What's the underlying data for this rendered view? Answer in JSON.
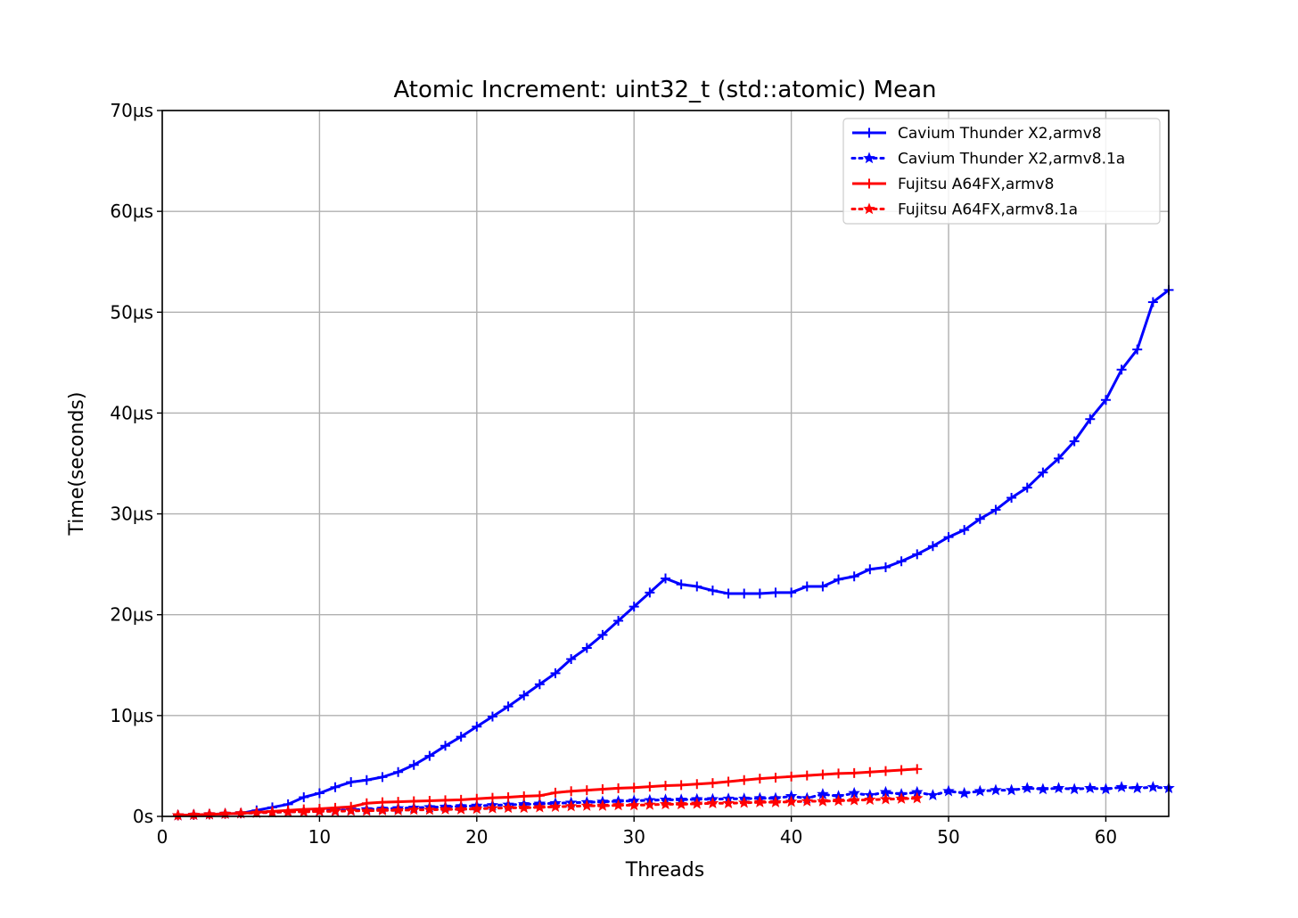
{
  "chart_data": {
    "type": "line",
    "title": "Atomic Increment: uint32_t (std::atomic) Mean",
    "xlabel": "Threads",
    "ylabel": "Time(seconds)",
    "xlim": [
      0,
      64
    ],
    "ylim": [
      0,
      70
    ],
    "x_ticks": [
      0,
      10,
      20,
      30,
      40,
      50,
      60
    ],
    "y_ticks": [
      0,
      10,
      20,
      30,
      40,
      50,
      60,
      70
    ],
    "y_tick_labels": [
      "0s",
      "10µs",
      "20µs",
      "30µs",
      "40µs",
      "50µs",
      "60µs",
      "70µs"
    ],
    "grid": true,
    "legend_position": "top-right",
    "series": [
      {
        "name": "Cavium Thunder X2,armv8",
        "color": "#0000ff",
        "line_style": "solid",
        "marker": "plus",
        "x": [
          1,
          2,
          3,
          4,
          5,
          6,
          7,
          8,
          9,
          10,
          11,
          12,
          13,
          14,
          15,
          16,
          17,
          18,
          19,
          20,
          21,
          22,
          23,
          24,
          25,
          26,
          27,
          28,
          29,
          30,
          31,
          32,
          33,
          34,
          35,
          36,
          37,
          38,
          39,
          40,
          41,
          42,
          43,
          44,
          45,
          46,
          47,
          48,
          49,
          50,
          51,
          52,
          53,
          54,
          55,
          56,
          57,
          58,
          59,
          60,
          61,
          62,
          63,
          64
        ],
        "values": [
          0.1,
          0.15,
          0.2,
          0.25,
          0.3,
          0.6,
          0.9,
          1.2,
          1.9,
          2.3,
          2.9,
          3.4,
          3.6,
          3.9,
          4.4,
          5.1,
          6.0,
          7.0,
          7.9,
          8.9,
          9.9,
          10.9,
          12.0,
          13.1,
          14.2,
          15.6,
          16.7,
          18.0,
          19.4,
          20.8,
          22.2,
          23.6,
          23.0,
          22.8,
          22.4,
          22.1,
          22.1,
          22.1,
          22.2,
          22.2,
          22.8,
          22.8,
          23.5,
          23.8,
          24.5,
          24.7,
          25.3,
          26.0,
          26.8,
          27.7,
          28.4,
          29.5,
          30.4,
          31.6,
          32.6,
          34.1,
          35.5,
          37.2,
          39.4,
          41.3,
          44.3,
          46.3,
          51.0,
          52.2
        ]
      },
      {
        "name": "Cavium Thunder X2,armv8.1a",
        "color": "#0000ff",
        "line_style": "dotted",
        "marker": "star",
        "x": [
          1,
          2,
          3,
          4,
          5,
          6,
          7,
          8,
          9,
          10,
          11,
          12,
          13,
          14,
          15,
          16,
          17,
          18,
          19,
          20,
          21,
          22,
          23,
          24,
          25,
          26,
          27,
          28,
          29,
          30,
          31,
          32,
          33,
          34,
          35,
          36,
          37,
          38,
          39,
          40,
          41,
          42,
          43,
          44,
          45,
          46,
          47,
          48,
          49,
          50,
          51,
          52,
          53,
          54,
          55,
          56,
          57,
          58,
          59,
          60,
          61,
          62,
          63,
          64
        ],
        "values": [
          0.1,
          0.15,
          0.2,
          0.25,
          0.3,
          0.35,
          0.4,
          0.45,
          0.5,
          0.55,
          0.6,
          0.65,
          0.7,
          0.75,
          0.8,
          0.85,
          0.9,
          0.95,
          1.0,
          1.05,
          1.1,
          1.15,
          1.2,
          1.25,
          1.3,
          1.35,
          1.4,
          1.45,
          1.5,
          1.55,
          1.6,
          1.65,
          1.65,
          1.7,
          1.7,
          1.75,
          1.75,
          1.8,
          1.8,
          2.0,
          1.8,
          2.2,
          2.0,
          2.3,
          2.1,
          2.4,
          2.2,
          2.4,
          2.1,
          2.5,
          2.3,
          2.5,
          2.6,
          2.6,
          2.8,
          2.7,
          2.8,
          2.7,
          2.8,
          2.7,
          2.9,
          2.8,
          2.9,
          2.8
        ]
      },
      {
        "name": "Fujitsu A64FX,armv8",
        "color": "#ff0000",
        "line_style": "solid",
        "marker": "plus",
        "x": [
          1,
          2,
          3,
          4,
          5,
          6,
          7,
          8,
          9,
          10,
          11,
          12,
          13,
          14,
          15,
          16,
          17,
          18,
          19,
          20,
          21,
          22,
          23,
          24,
          25,
          26,
          27,
          28,
          29,
          30,
          31,
          32,
          33,
          34,
          35,
          36,
          37,
          38,
          39,
          40,
          41,
          42,
          43,
          44,
          45,
          46,
          47,
          48
        ],
        "values": [
          0.1,
          0.15,
          0.2,
          0.25,
          0.3,
          0.4,
          0.5,
          0.6,
          0.7,
          0.75,
          0.85,
          0.95,
          1.3,
          1.4,
          1.45,
          1.5,
          1.55,
          1.6,
          1.65,
          1.75,
          1.85,
          1.9,
          2.0,
          2.05,
          2.35,
          2.5,
          2.6,
          2.7,
          2.8,
          2.85,
          2.95,
          3.05,
          3.1,
          3.2,
          3.3,
          3.45,
          3.6,
          3.75,
          3.85,
          3.95,
          4.05,
          4.15,
          4.25,
          4.3,
          4.4,
          4.5,
          4.6,
          4.7
        ]
      },
      {
        "name": "Fujitsu A64FX,armv8.1a",
        "color": "#ff0000",
        "line_style": "dotted",
        "marker": "star",
        "x": [
          1,
          2,
          3,
          4,
          5,
          6,
          7,
          8,
          9,
          10,
          11,
          12,
          13,
          14,
          15,
          16,
          17,
          18,
          19,
          20,
          21,
          22,
          23,
          24,
          25,
          26,
          27,
          28,
          29,
          30,
          31,
          32,
          33,
          34,
          35,
          36,
          37,
          38,
          39,
          40,
          41,
          42,
          43,
          44,
          45,
          46,
          47,
          48
        ],
        "values": [
          0.1,
          0.15,
          0.2,
          0.25,
          0.3,
          0.35,
          0.4,
          0.45,
          0.45,
          0.5,
          0.5,
          0.55,
          0.55,
          0.6,
          0.6,
          0.65,
          0.65,
          0.7,
          0.7,
          0.75,
          0.8,
          0.85,
          0.85,
          0.9,
          0.95,
          1.0,
          1.05,
          1.05,
          1.1,
          1.1,
          1.15,
          1.2,
          1.2,
          1.25,
          1.3,
          1.3,
          1.35,
          1.4,
          1.4,
          1.45,
          1.5,
          1.5,
          1.55,
          1.6,
          1.65,
          1.7,
          1.75,
          1.8
        ]
      }
    ]
  }
}
